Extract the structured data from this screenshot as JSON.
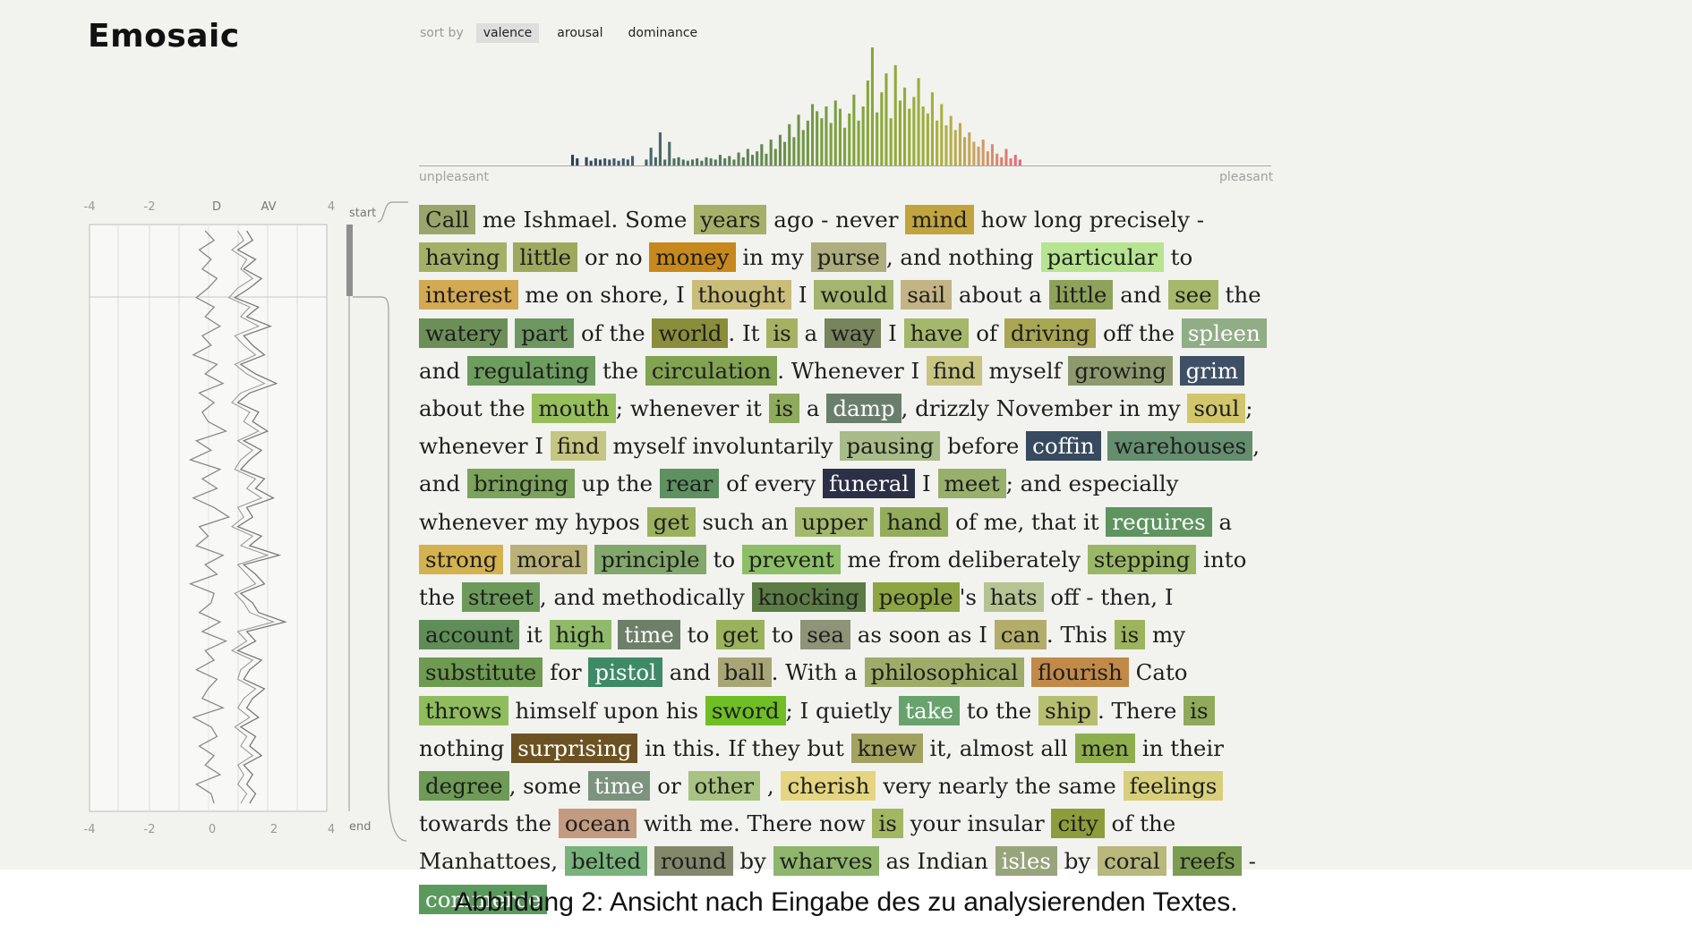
{
  "app": {
    "title": "Emosaic"
  },
  "sort": {
    "label": "sort by",
    "options": [
      "valence",
      "arousal",
      "dominance"
    ],
    "selected": "valence"
  },
  "histogram": {
    "left_label": "unpleasant",
    "right_label": "pleasant",
    "bars": [
      {
        "v": 0.09,
        "c": "#2e3d4c"
      },
      {
        "v": 0.06,
        "c": "#2e3d4c"
      },
      {
        "v": 0.0,
        "c": "#2e3d4c"
      },
      {
        "v": 0.07,
        "c": "#34465a"
      },
      {
        "v": 0.04,
        "c": "#34465a"
      },
      {
        "v": 0.06,
        "c": "#3a4e60"
      },
      {
        "v": 0.05,
        "c": "#3a4e60"
      },
      {
        "v": 0.06,
        "c": "#3e5565"
      },
      {
        "v": 0.05,
        "c": "#3e5565"
      },
      {
        "v": 0.06,
        "c": "#40586a"
      },
      {
        "v": 0.04,
        "c": "#40586a"
      },
      {
        "v": 0.06,
        "c": "#425b6b"
      },
      {
        "v": 0.05,
        "c": "#425b6b"
      },
      {
        "v": 0.08,
        "c": "#44606c"
      },
      {
        "v": 0.0,
        "c": "#44606c"
      },
      {
        "v": 0.0,
        "c": "#44606c"
      },
      {
        "v": 0.05,
        "c": "#466468"
      },
      {
        "v": 0.15,
        "c": "#466468"
      },
      {
        "v": 0.07,
        "c": "#486866"
      },
      {
        "v": 0.28,
        "c": "#486866"
      },
      {
        "v": 0.05,
        "c": "#4a6c64"
      },
      {
        "v": 0.2,
        "c": "#4a6c64"
      },
      {
        "v": 0.06,
        "c": "#4c6f62"
      },
      {
        "v": 0.07,
        "c": "#4c6f62"
      },
      {
        "v": 0.05,
        "c": "#4e7260"
      },
      {
        "v": 0.04,
        "c": "#4e7260"
      },
      {
        "v": 0.05,
        "c": "#50745e"
      },
      {
        "v": 0.06,
        "c": "#50745e"
      },
      {
        "v": 0.04,
        "c": "#52775c"
      },
      {
        "v": 0.07,
        "c": "#52775c"
      },
      {
        "v": 0.06,
        "c": "#54795a"
      },
      {
        "v": 0.05,
        "c": "#54795a"
      },
      {
        "v": 0.09,
        "c": "#577c58"
      },
      {
        "v": 0.06,
        "c": "#577c58"
      },
      {
        "v": 0.08,
        "c": "#5a7f56"
      },
      {
        "v": 0.05,
        "c": "#5a7f56"
      },
      {
        "v": 0.11,
        "c": "#5d8254"
      },
      {
        "v": 0.07,
        "c": "#5d8254"
      },
      {
        "v": 0.14,
        "c": "#608552"
      },
      {
        "v": 0.09,
        "c": "#608552"
      },
      {
        "v": 0.12,
        "c": "#638850"
      },
      {
        "v": 0.18,
        "c": "#638850"
      },
      {
        "v": 0.1,
        "c": "#668b4e"
      },
      {
        "v": 0.22,
        "c": "#668b4e"
      },
      {
        "v": 0.14,
        "c": "#698e4c"
      },
      {
        "v": 0.26,
        "c": "#698e4c"
      },
      {
        "v": 0.2,
        "c": "#6c914a"
      },
      {
        "v": 0.35,
        "c": "#6c914a"
      },
      {
        "v": 0.24,
        "c": "#6f9448"
      },
      {
        "v": 0.43,
        "c": "#6f9448"
      },
      {
        "v": 0.3,
        "c": "#729746"
      },
      {
        "v": 0.38,
        "c": "#729746"
      },
      {
        "v": 0.52,
        "c": "#759a44"
      },
      {
        "v": 0.46,
        "c": "#759a44"
      },
      {
        "v": 0.4,
        "c": "#789d42"
      },
      {
        "v": 0.5,
        "c": "#789d42"
      },
      {
        "v": 0.36,
        "c": "#7ba040"
      },
      {
        "v": 0.55,
        "c": "#7ba040"
      },
      {
        "v": 0.48,
        "c": "#7ea33e"
      },
      {
        "v": 0.32,
        "c": "#7ea33e"
      },
      {
        "v": 0.44,
        "c": "#81a43d"
      },
      {
        "v": 0.6,
        "c": "#81a43d"
      },
      {
        "v": 0.38,
        "c": "#84a53c"
      },
      {
        "v": 0.5,
        "c": "#84a53c"
      },
      {
        "v": 0.72,
        "c": "#87a63b"
      },
      {
        "v": 1.0,
        "c": "#8aa73a"
      },
      {
        "v": 0.45,
        "c": "#8aa73a"
      },
      {
        "v": 0.62,
        "c": "#8da83a"
      },
      {
        "v": 0.78,
        "c": "#8da83a"
      },
      {
        "v": 0.4,
        "c": "#90a93a"
      },
      {
        "v": 0.85,
        "c": "#93aa3a"
      },
      {
        "v": 0.55,
        "c": "#93aa3a"
      },
      {
        "v": 0.66,
        "c": "#96ab3b"
      },
      {
        "v": 0.48,
        "c": "#96ab3b"
      },
      {
        "v": 0.58,
        "c": "#99ac3c"
      },
      {
        "v": 0.74,
        "c": "#9cad3d"
      },
      {
        "v": 0.5,
        "c": "#9cad3d"
      },
      {
        "v": 0.44,
        "c": "#a0ae3e"
      },
      {
        "v": 0.62,
        "c": "#a4ae40"
      },
      {
        "v": 0.38,
        "c": "#a8ae42"
      },
      {
        "v": 0.52,
        "c": "#acae45"
      },
      {
        "v": 0.34,
        "c": "#b0ae48"
      },
      {
        "v": 0.42,
        "c": "#b4ad4b"
      },
      {
        "v": 0.3,
        "c": "#b8ac4e"
      },
      {
        "v": 0.36,
        "c": "#bcaa52"
      },
      {
        "v": 0.24,
        "c": "#c0a856"
      },
      {
        "v": 0.28,
        "c": "#c4a65a"
      },
      {
        "v": 0.2,
        "c": "#c8a45e"
      },
      {
        "v": 0.16,
        "c": "#cc9f62"
      },
      {
        "v": 0.22,
        "c": "#d09a66"
      },
      {
        "v": 0.12,
        "c": "#d4956a"
      },
      {
        "v": 0.18,
        "c": "#d68f6c"
      },
      {
        "v": 0.1,
        "c": "#d8896e"
      },
      {
        "v": 0.07,
        "c": "#da8270"
      },
      {
        "v": 0.14,
        "c": "#dc7c72"
      },
      {
        "v": 0.06,
        "c": "#de7674"
      },
      {
        "v": 0.09,
        "c": "#e07076"
      },
      {
        "v": 0.05,
        "c": "#e26a78"
      }
    ]
  },
  "av_chart": {
    "top_ticks": [
      "-4",
      "-2",
      "D",
      "AV",
      "4"
    ],
    "bottom_ticks": [
      "-4",
      "-2",
      "0",
      "2",
      "4"
    ],
    "start_label": "start",
    "end_label": "end",
    "x_range": [
      -4,
      4
    ],
    "d_line": [
      -0.1,
      0.2,
      -0.3,
      0.1,
      -0.2,
      0.3,
      0.0,
      -0.4,
      0.2,
      -0.1,
      0.4,
      -0.2,
      0.1,
      -0.5,
      0.3,
      -0.1,
      0.5,
      -0.3,
      0.2,
      -0.2,
      0.0,
      0.6,
      -0.4,
      0.1,
      -0.6,
      0.4,
      -0.2,
      0.3,
      -0.5,
      0.2,
      0.7,
      -0.3,
      0.0,
      -0.4,
      0.5,
      -0.1,
      0.3,
      -0.6,
      0.2,
      0.1,
      -0.3,
      0.4,
      -0.2,
      0.6,
      -0.1,
      0.2,
      -0.4,
      0.3,
      0.0,
      -0.2,
      0.5,
      -0.5,
      0.1,
      0.3,
      -0.3,
      0.2,
      -0.1,
      0.4,
      -0.4,
      0.1,
      0.2
    ],
    "av_line": [
      1.3,
      1.5,
      1.0,
      1.6,
      1.2,
      1.8,
      1.4,
      0.9,
      1.7,
      1.3,
      2.1,
      1.2,
      1.5,
      1.9,
      1.1,
      1.6,
      2.3,
      1.4,
      1.0,
      1.7,
      1.5,
      2.0,
      1.2,
      1.8,
      1.4,
      1.1,
      1.9,
      1.6,
      2.2,
      1.3,
      1.5,
      1.0,
      1.8,
      1.4,
      2.4,
      1.2,
      1.6,
      1.9,
      1.1,
      1.5,
      1.7,
      2.6,
      1.3,
      1.6,
      1.0,
      1.8,
      1.4,
      1.2,
      1.9,
      1.5,
      1.3,
      1.7,
      1.1,
      1.6,
      1.4,
      1.8,
      1.2,
      1.5,
      1.3,
      1.6,
      1.4
    ],
    "av_line2": [
      1.0,
      1.2,
      0.8,
      1.3,
      1.1,
      1.5,
      1.0,
      0.7,
      1.4,
      1.1,
      1.7,
      0.9,
      1.2,
      1.6,
      0.9,
      1.3,
      1.9,
      1.1,
      0.8,
      1.4,
      1.2,
      1.7,
      1.0,
      1.5,
      1.1,
      0.9,
      1.6,
      1.3,
      1.8,
      1.0,
      1.2,
      0.8,
      1.5,
      1.1,
      2.0,
      1.0,
      1.3,
      1.6,
      0.9,
      1.2,
      1.4,
      2.2,
      1.0,
      1.3,
      0.8,
      1.5,
      1.1,
      1.0,
      1.6,
      1.2,
      1.0,
      1.4,
      0.9,
      1.3,
      1.1,
      1.5,
      1.0,
      1.2,
      1.0,
      1.3,
      1.1
    ]
  },
  "text_words": [
    {
      "t": "Call",
      "c": "#9aa56b"
    },
    {
      "t": "me Ishmael. Some"
    },
    {
      "t": "years",
      "c": "#a6b068"
    },
    {
      "t": "ago - never"
    },
    {
      "t": "mind",
      "c": "#c1a43d"
    },
    {
      "t": "how long precisely -"
    },
    {
      "t": "having",
      "c": "#a5b067"
    },
    {
      "t": "little",
      "c": "#9fa95e"
    },
    {
      "t": "or no"
    },
    {
      "t": "money",
      "c": "#c7891c"
    },
    {
      "t": "in my"
    },
    {
      "t": "purse",
      "c": "#adad7d"
    },
    {
      "t": ", and nothing",
      "p": 1
    },
    {
      "t": "particular",
      "c": "#b6e490"
    },
    {
      "t": "to"
    },
    {
      "t": "interest",
      "c": "#d3a954"
    },
    {
      "t": "me on"
    },
    {
      "t": "shore, I"
    },
    {
      "t": "thought",
      "c": "#c9bd79"
    },
    {
      "t": "I"
    },
    {
      "t": "would",
      "c": "#a3b56e"
    },
    {
      "t": "sail",
      "c": "#c3b485"
    },
    {
      "t": "about a"
    },
    {
      "t": "little",
      "c": "#8ea25a"
    },
    {
      "t": "and"
    },
    {
      "t": "see",
      "c": "#a7b86c"
    },
    {
      "t": "the"
    },
    {
      "t": "watery",
      "c": "#6c8f58"
    },
    {
      "t": "part",
      "c": "#6d9660"
    },
    {
      "t": "of the"
    },
    {
      "t": "world",
      "c": "#8a8e3a"
    },
    {
      "t": ". It",
      "p": 1
    },
    {
      "t": "is",
      "c": "#a6b262"
    },
    {
      "t": "a"
    },
    {
      "t": "way",
      "c": "#78845b"
    },
    {
      "t": "I"
    },
    {
      "t": "have",
      "c": "#a5b76a"
    },
    {
      "t": "of"
    },
    {
      "t": "driving",
      "c": "#a9a654"
    },
    {
      "t": "off the"
    },
    {
      "t": "spleen",
      "c": "#91ad86",
      "w": 1
    },
    {
      "t": "and"
    },
    {
      "t": "regulating",
      "c": "#6d9d5e"
    },
    {
      "t": "the"
    },
    {
      "t": "circulation",
      "c": "#82a352"
    },
    {
      "t": ". Whenever I",
      "p": 1
    },
    {
      "t": "find",
      "c": "#c8c583"
    },
    {
      "t": "myself"
    },
    {
      "t": "growing",
      "c": "#8e9a6e"
    },
    {
      "t": "grim",
      "c": "#3f5066",
      "w": 1
    },
    {
      "t": "about the"
    },
    {
      "t": "mouth",
      "c": "#97be5c"
    },
    {
      "t": ";",
      "p": 1
    },
    {
      "t": "whenever it"
    },
    {
      "t": "is",
      "c": "#8eaa5d"
    },
    {
      "t": "a"
    },
    {
      "t": "damp",
      "c": "#6a7e6e",
      "w": 1
    },
    {
      "t": ", drizzly November in my",
      "p": 1
    },
    {
      "t": "soul",
      "c": "#d2c66c"
    },
    {
      "t": "; whenever I",
      "p": 1
    },
    {
      "t": "find",
      "c": "#c6c684"
    },
    {
      "t": "myself"
    },
    {
      "t": "involuntarily"
    },
    {
      "t": "pausing",
      "c": "#a8bb88"
    },
    {
      "t": "before"
    },
    {
      "t": "coffin",
      "c": "#374a5f",
      "w": 1
    },
    {
      "t": "warehouses",
      "c": "#648e6e"
    },
    {
      "t": ", and",
      "p": 1
    },
    {
      "t": "bringing",
      "c": "#7ba35b"
    },
    {
      "t": "up the"
    },
    {
      "t": "rear",
      "c": "#5d9160"
    },
    {
      "t": "of every"
    },
    {
      "t": "funeral",
      "c": "#2b3047",
      "w": 1
    },
    {
      "t": "I"
    },
    {
      "t": "meet",
      "c": "#98b06c"
    },
    {
      "t": "; and especially whenever my hypos",
      "p": 1
    },
    {
      "t": "get",
      "c": "#9cb05e"
    },
    {
      "t": "such an"
    },
    {
      "t": "upper",
      "c": "#a4b96c"
    },
    {
      "t": "hand",
      "c": "#93ad5c"
    },
    {
      "t": "of me, that it"
    },
    {
      "t": "requires",
      "c": "#5f9360",
      "w": 1
    },
    {
      "t": "a"
    },
    {
      "t": "strong",
      "c": "#d3b24f"
    },
    {
      "t": "moral",
      "c": "#b9b178"
    },
    {
      "t": "principle",
      "c": "#82a86b"
    },
    {
      "t": "to"
    },
    {
      "t": "prevent",
      "c": "#8dc066"
    },
    {
      "t": "me from deliberately"
    },
    {
      "t": "stepping",
      "c": "#9ab766"
    },
    {
      "t": "into the"
    },
    {
      "t": "street",
      "c": "#6c9a5a"
    },
    {
      "t": ", and methodically",
      "p": 1
    },
    {
      "t": "knocking",
      "c": "#5c7c45"
    },
    {
      "t": "people",
      "c": "#8ea544"
    },
    {
      "t": "'s",
      "p": 1
    },
    {
      "t": "hats",
      "c": "#b6c393"
    },
    {
      "t": "off - then, I"
    },
    {
      "t": "account",
      "c": "#5f8d57"
    },
    {
      "t": "it"
    },
    {
      "t": "high",
      "c": "#8fba6a"
    },
    {
      "t": "time",
      "c": "#6d7f69",
      "w": 1
    },
    {
      "t": "to"
    },
    {
      "t": "get",
      "c": "#9bb25d"
    },
    {
      "t": "to"
    },
    {
      "t": "sea",
      "c": "#8f9377"
    },
    {
      "t": "as soon as I"
    },
    {
      "t": "can",
      "c": "#b3ad6c"
    },
    {
      "t": ". This",
      "p": 1
    },
    {
      "t": "is",
      "c": "#9eb35d"
    },
    {
      "t": "my"
    },
    {
      "t": "substitute",
      "c": "#6e9a51"
    },
    {
      "t": "for"
    },
    {
      "t": "pistol",
      "c": "#3f8a66",
      "w": 1
    },
    {
      "t": "and"
    },
    {
      "t": "ball",
      "c": "#a8a677"
    },
    {
      "t": ". With a",
      "p": 1
    },
    {
      "t": "philosophical",
      "c": "#9fac69"
    },
    {
      "t": "flourish",
      "c": "#c18a49"
    },
    {
      "t": "Cato"
    },
    {
      "t": "throws",
      "c": "#8fbd5e"
    },
    {
      "t": "himself upon his"
    },
    {
      "t": "sword",
      "c": "#6fbe24"
    },
    {
      "t": "; I quietly",
      "p": 1
    },
    {
      "t": "take",
      "c": "#68a36d",
      "w": 1
    },
    {
      "t": "to the"
    },
    {
      "t": "ship",
      "c": "#b7be70"
    },
    {
      "t": ".",
      "p": 1
    },
    {
      "t": "There"
    },
    {
      "t": "is",
      "c": "#8faa5a"
    },
    {
      "t": "nothing"
    },
    {
      "t": "surprising",
      "c": "#6c5222",
      "w": 1
    },
    {
      "t": "in this. If they but"
    },
    {
      "t": "knew",
      "c": "#a2a360"
    },
    {
      "t": "it, almost all"
    },
    {
      "t": "men",
      "c": "#8faf4f"
    },
    {
      "t": "in"
    },
    {
      "t": "their"
    },
    {
      "t": "degree",
      "c": "#6e9b56"
    },
    {
      "t": ", some",
      "p": 1
    },
    {
      "t": "time",
      "c": "#7c947e",
      "w": 1
    },
    {
      "t": "or"
    },
    {
      "t": "other",
      "c": "#a8c281"
    },
    {
      "t": ","
    },
    {
      "t": "cherish",
      "c": "#e5d580"
    },
    {
      "t": "very nearly the same"
    },
    {
      "t": "feelings",
      "c": "#d7cf7c"
    },
    {
      "t": "towards the"
    },
    {
      "t": "ocean",
      "c": "#c39b80"
    },
    {
      "t": "with me. There now"
    },
    {
      "t": "is",
      "c": "#a3b662"
    },
    {
      "t": "your insular"
    },
    {
      "t": "city",
      "c": "#8e9d3b"
    },
    {
      "t": "of the Manhattoes,"
    },
    {
      "t": "belted",
      "c": "#7ab27b"
    },
    {
      "t": "round",
      "c": "#83886b"
    },
    {
      "t": "by"
    },
    {
      "t": "wharves",
      "c": "#8fb66c"
    },
    {
      "t": "as Indian"
    },
    {
      "t": "isles",
      "c": "#98a47c",
      "w": 1
    },
    {
      "t": "by"
    },
    {
      "t": "coral",
      "c": "#b8b77c"
    },
    {
      "t": "reefs",
      "c": "#7b9c52"
    },
    {
      "t": "-"
    },
    {
      "t": "commerce",
      "c": "#5b9a5d",
      "w": 1
    }
  ],
  "caption": "Abbildung 2: Ansicht nach Eingabe des zu analysierenden Textes."
}
